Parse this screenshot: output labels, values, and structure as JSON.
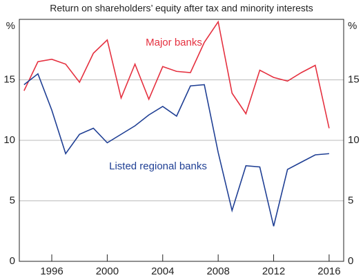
{
  "chart_data": {
    "type": "line",
    "subtitle": "Return on shareholders’ equity after tax and minority interests",
    "x": [
      1994,
      1995,
      1996,
      1997,
      1998,
      1999,
      2000,
      2001,
      2002,
      2003,
      2004,
      2005,
      2006,
      2007,
      2008,
      2009,
      2010,
      2011,
      2012,
      2013,
      2014,
      2015,
      2016
    ],
    "series": [
      {
        "name": "Major banks",
        "color": "#e5303f",
        "values": [
          14.1,
          16.5,
          16.7,
          16.3,
          14.8,
          17.2,
          18.3,
          13.5,
          16.3,
          13.4,
          16.1,
          15.7,
          15.6,
          18.1,
          19.8,
          13.9,
          12.2,
          15.8,
          15.2,
          14.9,
          15.6,
          16.2,
          11.0
        ]
      },
      {
        "name": "Listed regional banks",
        "color": "#1f3f94",
        "values": [
          14.6,
          15.5,
          12.5,
          8.9,
          10.5,
          11.0,
          9.8,
          10.5,
          11.2,
          12.1,
          12.8,
          12.0,
          14.5,
          14.6,
          9.0,
          4.2,
          7.9,
          7.8,
          2.9,
          7.6,
          8.2,
          8.8,
          8.9
        ]
      }
    ],
    "xlim": [
      1993.66,
      2017.05
    ],
    "xticks": [
      1996,
      2000,
      2004,
      2008,
      2012,
      2016
    ],
    "ylim": [
      0,
      20
    ],
    "yticks": [
      0,
      5,
      10,
      15,
      {
        "value": 20,
        "label": "%"
      }
    ],
    "grid": true
  }
}
